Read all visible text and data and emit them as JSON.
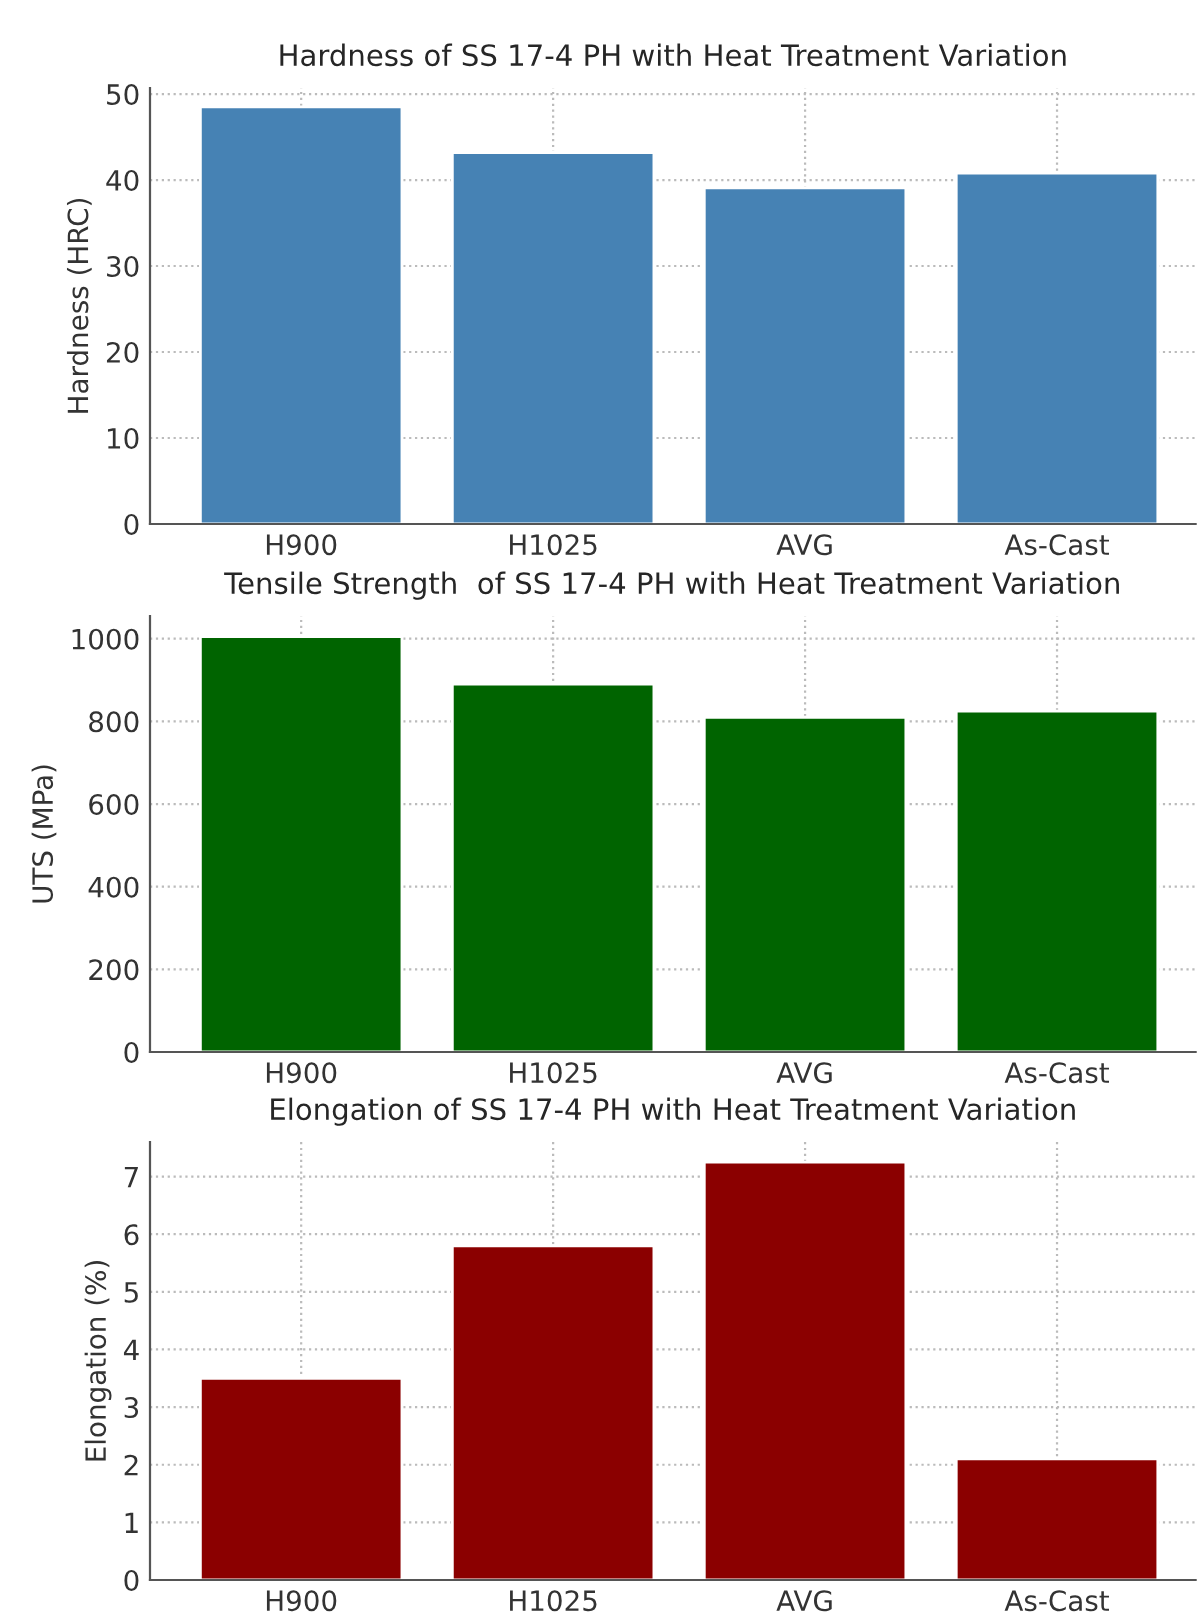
{
  "chart_data": [
    {
      "type": "bar",
      "title": "Hardness of SS 17-4 PH with Heat Treatment Variation",
      "ylabel": "Hardness (HRC)",
      "categories": [
        "H900",
        "H1025",
        "AVG",
        "As-Cast"
      ],
      "values": [
        48.5,
        43.2,
        39.1,
        40.8
      ],
      "color": "#4682b4",
      "ylim": [
        0,
        50.7
      ],
      "yticks": [
        0,
        10,
        20,
        30,
        40,
        50
      ],
      "grid": true
    },
    {
      "type": "bar",
      "title": "Tensile Strength  of SS 17-4 PH with Heat Treatment Variation",
      "ylabel": "UTS (MPa)",
      "categories": [
        "H900",
        "H1025",
        "AVG",
        "As-Cast"
      ],
      "values": [
        1005,
        890,
        810,
        825
      ],
      "color": "#006400",
      "ylim": [
        0,
        1055
      ],
      "yticks": [
        0,
        200,
        400,
        600,
        800,
        1000
      ],
      "grid": true
    },
    {
      "type": "bar",
      "title": "Elongation of SS 17-4 PH with Heat Treatment Variation",
      "ylabel": "Elongation (%)",
      "categories": [
        "H900",
        "H1025",
        "AVG",
        "As-Cast"
      ],
      "values": [
        3.5,
        5.8,
        7.25,
        2.1
      ],
      "color": "#8b0000",
      "ylim": [
        0,
        7.6
      ],
      "yticks": [
        0,
        1,
        2,
        3,
        4,
        5,
        6,
        7
      ],
      "grid": true
    }
  ]
}
